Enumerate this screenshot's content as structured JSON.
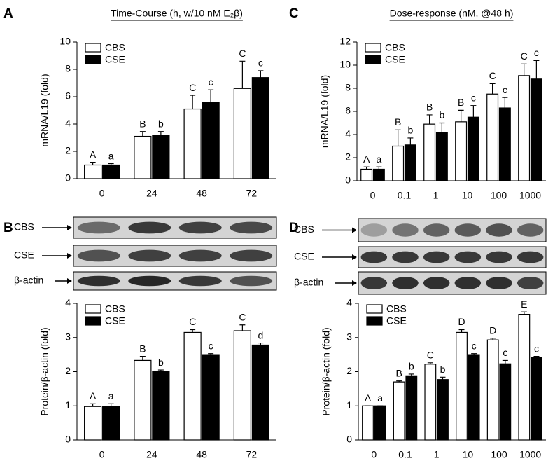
{
  "chart_data": [
    {
      "type": "bar",
      "panel": "A",
      "title": "Time-Course (h, w/10 nM E₂β)",
      "y_label": "mRNA/L19 (fold)",
      "categories": [
        "0",
        "24",
        "48",
        "72"
      ],
      "ylim": [
        0,
        10
      ],
      "yticks": [
        0,
        2,
        4,
        6,
        8,
        10
      ],
      "legend": "upper left",
      "series": [
        {
          "name": "CBS",
          "color": "#ffffff",
          "values": [
            1.0,
            3.1,
            5.1,
            6.6
          ],
          "errors": [
            0.2,
            0.35,
            1.0,
            2.0
          ],
          "letters": [
            "A",
            "B",
            "C",
            "C"
          ]
        },
        {
          "name": "CSE",
          "color": "#000000",
          "values": [
            1.0,
            3.2,
            5.6,
            7.4
          ],
          "errors": [
            0.1,
            0.25,
            0.9,
            0.5
          ],
          "letters": [
            "a",
            "b",
            "c",
            "c"
          ]
        }
      ]
    },
    {
      "type": "bar",
      "panel": "B",
      "y_label": "Protein/β-actin (fold)",
      "categories": [
        "0",
        "24",
        "48",
        "72"
      ],
      "ylim": [
        0,
        4
      ],
      "yticks": [
        0,
        1,
        2,
        3,
        4
      ],
      "legend": "upper left",
      "series": [
        {
          "name": "CBS",
          "color": "#ffffff",
          "values": [
            0.98,
            2.33,
            3.15,
            3.2
          ],
          "errors": [
            0.08,
            0.12,
            0.08,
            0.17
          ],
          "letters": [
            "A",
            "B",
            "C",
            "C"
          ]
        },
        {
          "name": "CSE",
          "color": "#000000",
          "values": [
            0.98,
            2.0,
            2.5,
            2.78
          ],
          "errors": [
            0.08,
            0.05,
            0.03,
            0.06
          ],
          "letters": [
            "a",
            "b",
            "c",
            "d"
          ]
        }
      ]
    },
    {
      "type": "bar",
      "panel": "C",
      "title": "Dose-response (nM, @48 h)",
      "y_label": "mRNA/L19 (fold)",
      "categories": [
        "0",
        "0.1",
        "1",
        "10",
        "100",
        "1000"
      ],
      "ylim": [
        0,
        12
      ],
      "yticks": [
        0,
        2,
        4,
        6,
        8,
        10,
        12
      ],
      "legend": "upper left",
      "series": [
        {
          "name": "CBS",
          "color": "#ffffff",
          "values": [
            1.0,
            3.0,
            4.9,
            5.1,
            7.5,
            9.1
          ],
          "errors": [
            0.2,
            1.4,
            0.8,
            1.0,
            0.9,
            1.0
          ],
          "letters": [
            "A",
            "B",
            "B",
            "B",
            "C",
            "C"
          ]
        },
        {
          "name": "CSE",
          "color": "#000000",
          "values": [
            1.0,
            3.1,
            4.2,
            5.5,
            6.3,
            8.8
          ],
          "errors": [
            0.2,
            0.6,
            0.8,
            1.0,
            0.9,
            1.6
          ],
          "letters": [
            "a",
            "b",
            "b",
            "c",
            "c",
            "c"
          ]
        }
      ]
    },
    {
      "type": "bar",
      "panel": "D",
      "y_label": "Protein/β-actin (fold)",
      "categories": [
        "0",
        "0.1",
        "1",
        "10",
        "100",
        "1000"
      ],
      "ylim": [
        0,
        4
      ],
      "yticks": [
        0,
        1,
        2,
        3,
        4
      ],
      "legend": "upper left",
      "series": [
        {
          "name": "CBS",
          "color": "#ffffff",
          "values": [
            1.0,
            1.7,
            2.22,
            3.15,
            2.93,
            3.68
          ],
          "errors": [
            0,
            0.03,
            0.04,
            0.08,
            0.05,
            0.07
          ],
          "letters": [
            "A",
            "B",
            "C",
            "D",
            "D",
            "E"
          ]
        },
        {
          "name": "CSE",
          "color": "#000000",
          "values": [
            1.0,
            1.88,
            1.77,
            2.5,
            2.23,
            2.42
          ],
          "errors": [
            0,
            0.05,
            0.07,
            0.03,
            0.1,
            0.03
          ],
          "letters": [
            "a",
            "b",
            "b",
            "c",
            "c",
            "c"
          ]
        }
      ]
    }
  ],
  "blots": [
    {
      "rows": [
        "CBS",
        "CSE",
        "β-actin"
      ]
    },
    {
      "rows": [
        "CBS",
        "CSE",
        "β-actin"
      ]
    }
  ]
}
